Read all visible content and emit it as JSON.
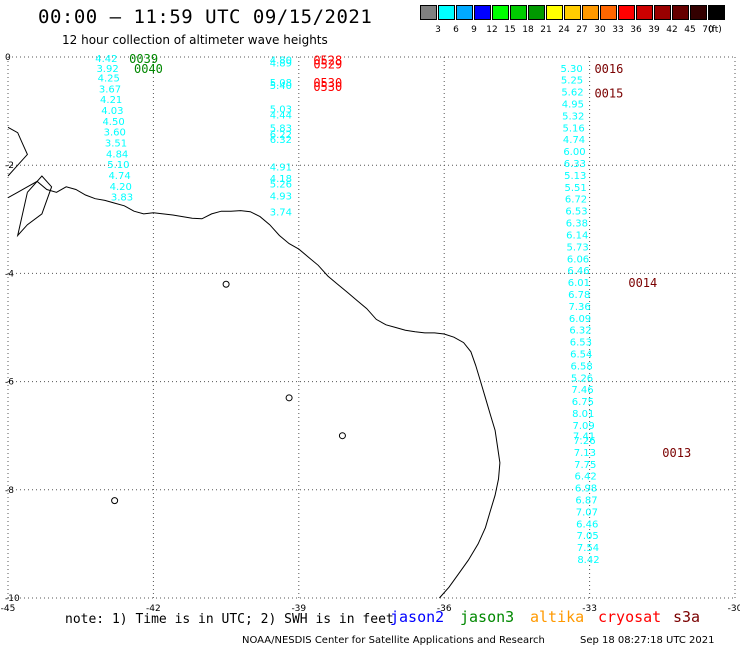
{
  "header": {
    "title": "00:00 – 11:59 UTC 09/15/2021",
    "subtitle": "12 hour collection of altimeter wave heights"
  },
  "legend": {
    "unit": "(ft)",
    "bins": [
      {
        "label": "",
        "color": "#808080"
      },
      {
        "label": "3",
        "color": "#00ffff"
      },
      {
        "label": "6",
        "color": "#00aaff"
      },
      {
        "label": "9",
        "color": "#0000ff"
      },
      {
        "label": "12",
        "color": "#00ff00"
      },
      {
        "label": "15",
        "color": "#00cc00"
      },
      {
        "label": "18",
        "color": "#009900"
      },
      {
        "label": "21",
        "color": "#ffff00"
      },
      {
        "label": "24",
        "color": "#ffcc00"
      },
      {
        "label": "27",
        "color": "#ff9900"
      },
      {
        "label": "30",
        "color": "#ff6600"
      },
      {
        "label": "33",
        "color": "#ff0000"
      },
      {
        "label": "36",
        "color": "#cc0000"
      },
      {
        "label": "39",
        "color": "#990000"
      },
      {
        "label": "42",
        "color": "#660000"
      },
      {
        "label": "45",
        "color": "#330000"
      },
      {
        "label": "70",
        "color": "#000000"
      }
    ]
  },
  "map": {
    "x_ticks": [
      "-45",
      "-42",
      "-39",
      "-36",
      "-33",
      "-30"
    ],
    "y_ticks": [
      "0",
      "-2",
      "-4",
      "-6",
      "-8",
      "-10"
    ],
    "lon_range": [
      -45,
      -30
    ],
    "lat_range": [
      -10,
      0
    ]
  },
  "tracks": [
    {
      "color": "#00ffff",
      "label_lon": -43.2,
      "labels": [
        {
          "lat": -0.02,
          "value": "4.42"
        },
        {
          "lat": -0.2,
          "value": "3.92"
        },
        {
          "lat": -0.38,
          "value": "4.25"
        },
        {
          "lat": -0.58,
          "value": "3.67"
        },
        {
          "lat": -0.78,
          "value": "4.21"
        },
        {
          "lat": -0.98,
          "value": "4.03"
        },
        {
          "lat": -1.18,
          "value": "4.50"
        },
        {
          "lat": -1.38,
          "value": "3.60"
        },
        {
          "lat": -1.58,
          "value": "3.51"
        },
        {
          "lat": -1.78,
          "value": "4.84"
        },
        {
          "lat": -1.98,
          "value": "5.10"
        },
        {
          "lat": -2.18,
          "value": "4.74"
        },
        {
          "lat": -2.38,
          "value": "4.20"
        },
        {
          "lat": -2.58,
          "value": "3.83"
        }
      ]
    },
    {
      "color": "#00ffff",
      "label_lon": -39.6,
      "labels": [
        {
          "lat": -0.05,
          "value": "4.80"
        },
        {
          "lat": -0.1,
          "value": "4.89"
        },
        {
          "lat": -0.46,
          "value": "5.08"
        },
        {
          "lat": -0.52,
          "value": "5.40"
        },
        {
          "lat": -0.95,
          "value": "5.03"
        },
        {
          "lat": -1.06,
          "value": "4.44"
        },
        {
          "lat": -1.3,
          "value": "5.83"
        },
        {
          "lat": -1.42,
          "value": "6.22"
        },
        {
          "lat": -1.52,
          "value": "6.32"
        },
        {
          "lat": -2.02,
          "value": "4.91"
        },
        {
          "lat": -2.24,
          "value": "4.18"
        },
        {
          "lat": -2.34,
          "value": "5.26"
        },
        {
          "lat": -2.56,
          "value": "4.93"
        },
        {
          "lat": -2.86,
          "value": "3.74"
        }
      ]
    },
    {
      "color": "#00ffff",
      "label_lon": -33.6,
      "labels": [
        {
          "lat": -0.2,
          "value": "5.30"
        },
        {
          "lat": -0.42,
          "value": "5.25"
        },
        {
          "lat": -0.64,
          "value": "5.62"
        },
        {
          "lat": -0.86,
          "value": "4.95"
        },
        {
          "lat": -1.08,
          "value": "5.32"
        },
        {
          "lat": -1.3,
          "value": "5.16"
        },
        {
          "lat": -1.52,
          "value": "4.74"
        },
        {
          "lat": -1.74,
          "value": "6.00"
        },
        {
          "lat": -1.96,
          "value": "6.33"
        },
        {
          "lat": -2.18,
          "value": "5.13"
        },
        {
          "lat": -2.4,
          "value": "5.51"
        },
        {
          "lat": -2.62,
          "value": "6.72"
        },
        {
          "lat": -2.84,
          "value": "6.53"
        },
        {
          "lat": -3.06,
          "value": "6.38"
        },
        {
          "lat": -3.28,
          "value": "6.14"
        },
        {
          "lat": -3.5,
          "value": "5.73"
        },
        {
          "lat": -3.72,
          "value": "6.06"
        },
        {
          "lat": -3.94,
          "value": "6.46"
        },
        {
          "lat": -4.16,
          "value": "6.01"
        },
        {
          "lat": -4.38,
          "value": "6.78"
        },
        {
          "lat": -4.6,
          "value": "7.36"
        },
        {
          "lat": -4.82,
          "value": "6.09"
        },
        {
          "lat": -5.04,
          "value": "6.32"
        },
        {
          "lat": -5.26,
          "value": "6.53"
        },
        {
          "lat": -5.48,
          "value": "6.54"
        },
        {
          "lat": -5.7,
          "value": "6.58"
        },
        {
          "lat": -5.92,
          "value": "5.26"
        },
        {
          "lat": -6.14,
          "value": "7.46"
        },
        {
          "lat": -6.36,
          "value": "6.75"
        },
        {
          "lat": -6.58,
          "value": "8.01"
        },
        {
          "lat": -6.8,
          "value": "7.09"
        },
        {
          "lat": -7.0,
          "value": "7.41"
        },
        {
          "lat": -7.08,
          "value": "7.26"
        },
        {
          "lat": -7.3,
          "value": "7.13"
        },
        {
          "lat": -7.52,
          "value": "7.75"
        },
        {
          "lat": -7.74,
          "value": "6.42"
        },
        {
          "lat": -7.96,
          "value": "6.98"
        },
        {
          "lat": -8.18,
          "value": "6.87"
        },
        {
          "lat": -8.4,
          "value": "7.07"
        },
        {
          "lat": -8.62,
          "value": "6.46"
        },
        {
          "lat": -8.84,
          "value": "7.05"
        },
        {
          "lat": -9.06,
          "value": "7.54"
        },
        {
          "lat": -9.28,
          "value": "8.42"
        }
      ]
    }
  ],
  "time_labels": [
    {
      "lon": -42.5,
      "lat": -0.02,
      "text": "0039",
      "color": "#008800"
    },
    {
      "lon": -42.4,
      "lat": -0.2,
      "text": "0040",
      "color": "#008800"
    },
    {
      "lon": -38.7,
      "lat": -0.05,
      "text": "0528",
      "color": "#ff0000"
    },
    {
      "lon": -38.7,
      "lat": -0.12,
      "text": "0529",
      "color": "#ff0000"
    },
    {
      "lon": -38.7,
      "lat": -0.46,
      "text": "0530",
      "color": "#ff0000"
    },
    {
      "lon": -38.7,
      "lat": -0.54,
      "text": "0530",
      "color": "#ff0000"
    },
    {
      "lon": -32.9,
      "lat": -0.2,
      "text": "0016",
      "color": "#7a0000"
    },
    {
      "lon": -32.9,
      "lat": -0.66,
      "text": "0015",
      "color": "#7a0000"
    },
    {
      "lon": -32.2,
      "lat": -4.16,
      "text": "0014",
      "color": "#7a0000"
    },
    {
      "lon": -31.5,
      "lat": -7.3,
      "text": "0013",
      "color": "#7a0000"
    }
  ],
  "footer": {
    "note": "note: 1) Time is in UTC; 2) SWH is in feet",
    "satellites": [
      {
        "name": "jason2",
        "color": "#0000ff"
      },
      {
        "name": "jason3",
        "color": "#008800"
      },
      {
        "name": "altika",
        "color": "#ff9900"
      },
      {
        "name": "cryosat",
        "color": "#ff0000"
      },
      {
        "name": "s3a",
        "color": "#7a0000"
      }
    ],
    "credit": "NOAA/NESDIS Center for Satellite Applications and Research",
    "timestamp": "Sep 18 08:27:18 UTC 2021"
  }
}
